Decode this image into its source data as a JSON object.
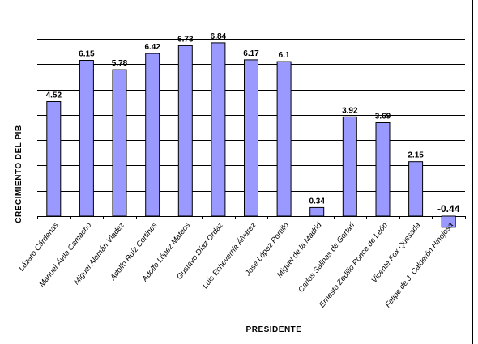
{
  "chart_data": {
    "type": "bar",
    "xlabel": "PRESIDENTE",
    "ylabel": "CRECIMIENTO DEL PIB",
    "ylim": [
      -0.44,
      7.5
    ],
    "grid": true,
    "categories": [
      "Lázaro Cárdenas",
      "Manuel Ávila Camacho",
      "Miguel Alemán Vladéz",
      "Adolfo Ruíz Cortines",
      "Adolfo López Mateos",
      "Gustavo Díaz Ordaz",
      "Luis Echeverría Álvarez",
      "José López Portillo",
      "Miguel de la Madrid",
      "Carlos Salinas de Gortari",
      "Ernesto Zedillo Ponce de León",
      "Vicente Fox Quesada",
      "Felipe de J. Calderón Hinojosa"
    ],
    "values": [
      4.52,
      6.15,
      5.78,
      6.42,
      6.73,
      6.84,
      6.17,
      6.1,
      0.34,
      3.92,
      3.69,
      2.15,
      -0.44
    ],
    "value_labels": [
      "4.52",
      "6.15",
      "5.78",
      "6.42",
      "6.73",
      "6.84",
      "6.17",
      "6.1",
      "0.34",
      "3.92",
      "3.69",
      "2.15",
      "-0.44"
    ],
    "colors": {
      "bar": "#9999ff",
      "border": "#000000"
    }
  }
}
